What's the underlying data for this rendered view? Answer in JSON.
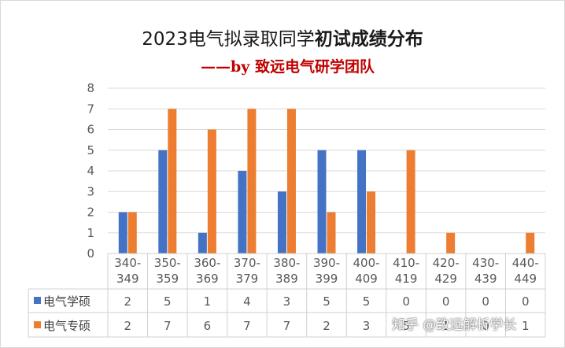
{
  "title": {
    "part1": "2023电气拟录取同学",
    "part2": "初试成绩分布"
  },
  "subtitle": "——by 致远电气研学团队",
  "watermark": "知乎 @致远解析学长",
  "chart_data": {
    "type": "bar",
    "categories": [
      "340-349",
      "350-359",
      "360-369",
      "370-379",
      "380-389",
      "390-399",
      "400-409",
      "410-419",
      "420-429",
      "430-439",
      "440-449"
    ],
    "series": [
      {
        "name": "电气学硕",
        "values": [
          2,
          5,
          1,
          4,
          3,
          5,
          5,
          0,
          0,
          0,
          0
        ],
        "color": "#4472c4"
      },
      {
        "name": "电气专硕",
        "values": [
          2,
          7,
          6,
          7,
          7,
          2,
          3,
          5,
          1,
          0,
          1
        ],
        "color": "#ed7d31"
      }
    ],
    "ylim": [
      0,
      8
    ],
    "yticks": [
      "0",
      "1",
      "2",
      "3",
      "4",
      "5",
      "6",
      "7",
      "8"
    ],
    "grid": true,
    "data_table": true
  }
}
